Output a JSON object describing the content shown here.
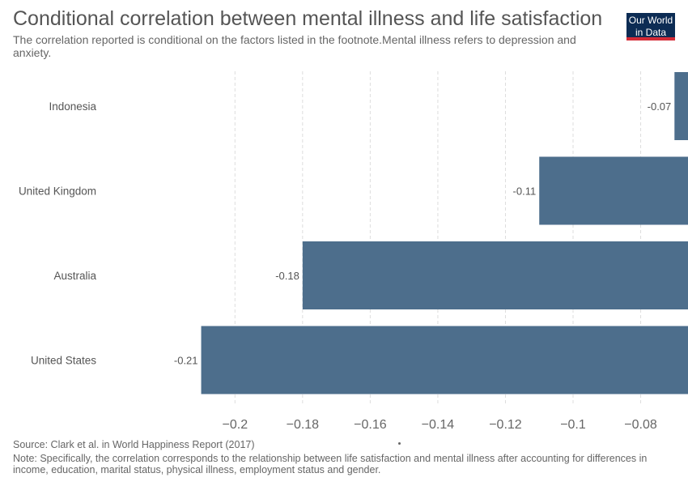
{
  "header": {
    "title": "Conditional correlation between mental illness and life satisfaction",
    "subtitle": "The correlation reported is conditional on the factors listed in the footnote.Mental illness refers to depression and anxiety."
  },
  "logo": {
    "line1": "Our World",
    "line2": "in Data"
  },
  "footer": {
    "source": "Source: Clark et al. in World Happiness Report (2017)",
    "note": "Note: Specifically, the correlation corresponds to the relationship between life satisfaction and mental illness after accounting for differences in income, education, marital status, physical illness, employment status and gender."
  },
  "colors": {
    "bar": "#4d6e8c",
    "grid": "#dddddd",
    "text": "#555555",
    "logo_bg": "#0c2c54",
    "logo_accent": "#d42b37"
  },
  "chart_data": {
    "type": "bar",
    "orientation": "horizontal",
    "categories": [
      "Indonesia",
      "United Kingdom",
      "Australia",
      "United States"
    ],
    "values": [
      -0.07,
      -0.11,
      -0.18,
      -0.21
    ],
    "value_labels": [
      "-0.07",
      "-0.11",
      "-0.18",
      "-0.21"
    ],
    "xlim": [
      -0.23,
      -0.066
    ],
    "xticks": [
      -0.2,
      -0.18,
      -0.16,
      -0.14,
      -0.12,
      -0.1,
      -0.08
    ],
    "xtick_labels": [
      "−0.2",
      "−0.18",
      "−0.16",
      "−0.14",
      "−0.12",
      "−0.1",
      "−0.08"
    ],
    "grid": true
  }
}
